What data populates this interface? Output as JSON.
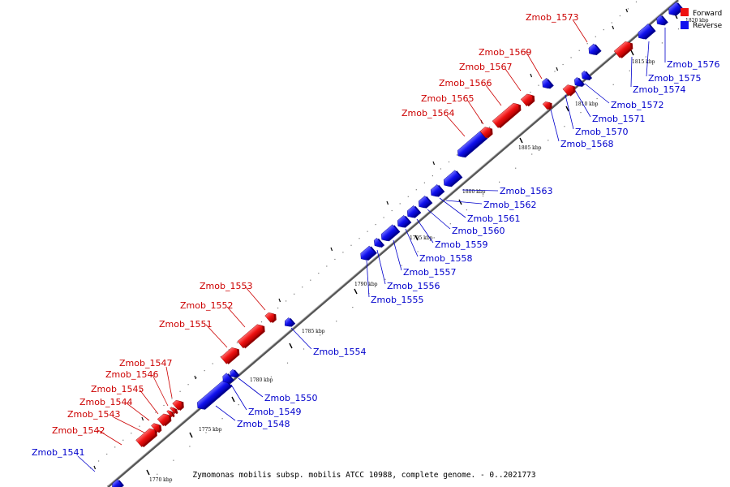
{
  "caption": "Zymomonas mobilis subsp. mobilis ATCC 10988, complete genome. - 0..2021773",
  "legend": {
    "forward_label": "Forward",
    "reverse_label": "Reverse",
    "forward_color": "#ee1111",
    "reverse_color": "#1111ee"
  },
  "ticks": [
    "1770 kbp",
    "1775 kbp",
    "1780 kbp",
    "1785 kbp",
    "1790 kbp",
    "1795 kbp",
    "1800 kbp",
    "1805 kbp",
    "1810 kbp",
    "1815 kbp",
    "1820 kbp"
  ],
  "genes": [
    {
      "name": "Zmob_1541",
      "strand": "reverse"
    },
    {
      "name": "Zmob_1542",
      "strand": "forward"
    },
    {
      "name": "Zmob_1543",
      "strand": "forward"
    },
    {
      "name": "Zmob_1544",
      "strand": "forward"
    },
    {
      "name": "Zmob_1545",
      "strand": "forward"
    },
    {
      "name": "Zmob_1546",
      "strand": "forward"
    },
    {
      "name": "Zmob_1547",
      "strand": "forward"
    },
    {
      "name": "Zmob_1548",
      "strand": "reverse"
    },
    {
      "name": "Zmob_1549",
      "strand": "reverse"
    },
    {
      "name": "Zmob_1550",
      "strand": "reverse"
    },
    {
      "name": "Zmob_1551",
      "strand": "forward"
    },
    {
      "name": "Zmob_1552",
      "strand": "forward"
    },
    {
      "name": "Zmob_1553",
      "strand": "forward"
    },
    {
      "name": "Zmob_1554",
      "strand": "reverse"
    },
    {
      "name": "Zmob_1555",
      "strand": "reverse"
    },
    {
      "name": "Zmob_1556",
      "strand": "reverse"
    },
    {
      "name": "Zmob_1557",
      "strand": "reverse"
    },
    {
      "name": "Zmob_1558",
      "strand": "reverse"
    },
    {
      "name": "Zmob_1559",
      "strand": "reverse"
    },
    {
      "name": "Zmob_1560",
      "strand": "reverse"
    },
    {
      "name": "Zmob_1561",
      "strand": "reverse"
    },
    {
      "name": "Zmob_1562",
      "strand": "reverse"
    },
    {
      "name": "Zmob_1563",
      "strand": "reverse"
    },
    {
      "name": "Zmob_1564",
      "strand": "forward"
    },
    {
      "name": "Zmob_1565",
      "strand": "forward"
    },
    {
      "name": "Zmob_1566",
      "strand": "forward"
    },
    {
      "name": "Zmob_1567",
      "strand": "forward"
    },
    {
      "name": "Zmob_1568",
      "strand": "reverse"
    },
    {
      "name": "Zmob_1569",
      "strand": "forward"
    },
    {
      "name": "Zmob_1570",
      "strand": "reverse"
    },
    {
      "name": "Zmob_1571",
      "strand": "reverse"
    },
    {
      "name": "Zmob_1572",
      "strand": "reverse"
    },
    {
      "name": "Zmob_1573",
      "strand": "forward"
    },
    {
      "name": "Zmob_1574",
      "strand": "reverse"
    },
    {
      "name": "Zmob_1575",
      "strand": "reverse"
    },
    {
      "name": "Zmob_1576",
      "strand": "reverse"
    }
  ]
}
